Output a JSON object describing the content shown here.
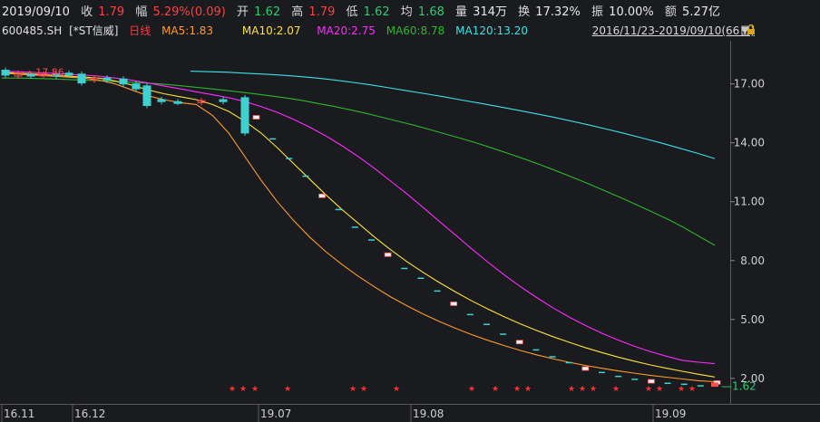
{
  "header": {
    "date": "2019/09/10",
    "close_label": "收",
    "close": "1.79",
    "change_label": "幅",
    "change": "5.29%(0.09)",
    "open_label": "开",
    "open": "1.62",
    "high_label": "高",
    "high": "1.79",
    "low_label": "低",
    "low": "1.62",
    "avg_label": "均",
    "avg": "1.68",
    "volume_label": "量",
    "volume": "314万",
    "turnover_label": "换",
    "turnover": "17.32%",
    "amplitude_label": "振",
    "amplitude": "10.00%",
    "amount_label": "额",
    "amount": "5.27亿"
  },
  "indicators": {
    "code": "600485.SH",
    "name": "[*ST信威]",
    "period": "日线",
    "ma5": "MA5:1.83",
    "ma10": "MA10:2.07",
    "ma20": "MA20:2.75",
    "ma60": "MA60:8.78",
    "ma120": "MA120:13.20",
    "range": "2016/11/23-2019/09/10(66日)",
    "dropdown": "▼",
    "colors": {
      "ma5": "#ff9a2e",
      "ma10": "#ffe23c",
      "ma20": "#ff2bff",
      "ma60": "#2fb52f",
      "ma120": "#3fe0e8",
      "up": "#ff4d4d",
      "down": "#3fd0d0"
    }
  },
  "annotations": {
    "high_price": "17.86",
    "last_price": "1.62"
  },
  "chart_data": {
    "type": "candlestick",
    "y_ticks": [
      "17.00",
      "14.00",
      "11.00",
      "8.00",
      "5.00",
      "2.00"
    ],
    "ylim": [
      0.7,
      19.2
    ],
    "x_ticks": [
      "16.11",
      "16.12",
      "19.07",
      "19.08",
      "19.09"
    ],
    "series": [
      {
        "name": "MA5",
        "values": [
          17.55,
          17.5,
          17.45,
          17.4,
          17.35,
          17.3,
          17.2,
          17.0,
          16.7,
          16.4,
          16.2,
          16.05,
          15.95,
          15.4,
          14.5,
          13.3,
          12.1,
          11.0,
          10.05,
          9.2,
          8.45,
          7.8,
          7.2,
          6.66,
          6.15,
          5.7,
          5.28,
          4.9,
          4.55,
          4.23,
          3.94,
          3.67,
          3.42,
          3.2,
          3.0,
          2.82,
          2.66,
          2.52,
          2.39,
          2.27,
          2.16,
          2.06,
          1.97,
          1.88,
          1.83
        ]
      },
      {
        "name": "MA10",
        "values": [
          17.6,
          17.55,
          17.5,
          17.45,
          17.4,
          17.35,
          17.3,
          17.15,
          16.95,
          16.7,
          16.5,
          16.35,
          16.2,
          15.95,
          15.6,
          15.1,
          14.5,
          13.75,
          12.95,
          12.15,
          11.35,
          10.6,
          9.9,
          9.2,
          8.55,
          7.95,
          7.4,
          6.88,
          6.4,
          5.95,
          5.53,
          5.14,
          4.78,
          4.44,
          4.13,
          3.84,
          3.57,
          3.32,
          3.09,
          2.88,
          2.69,
          2.52,
          2.36,
          2.21,
          2.07
        ]
      },
      {
        "name": "MA20",
        "values": [
          17.65,
          17.62,
          17.58,
          17.55,
          17.5,
          17.45,
          17.4,
          17.3,
          17.2,
          17.05,
          16.9,
          16.75,
          16.6,
          16.45,
          16.3,
          16.1,
          15.85,
          15.55,
          15.2,
          14.8,
          14.35,
          13.85,
          13.3,
          12.7,
          12.05,
          11.4,
          10.7,
          10.0,
          9.3,
          8.6,
          7.92,
          7.28,
          6.68,
          6.12,
          5.6,
          5.13,
          4.7,
          4.31,
          3.96,
          3.65,
          3.37,
          3.13,
          2.92,
          2.82,
          2.75
        ]
      },
      {
        "name": "MA60",
        "values": [
          17.3,
          17.3,
          17.28,
          17.26,
          17.23,
          17.2,
          17.17,
          17.13,
          17.09,
          17.05,
          17.0,
          16.93,
          16.85,
          16.77,
          16.68,
          16.59,
          16.49,
          16.39,
          16.28,
          16.15,
          16.0,
          15.85,
          15.68,
          15.5,
          15.3,
          15.1,
          14.9,
          14.68,
          14.45,
          14.22,
          13.98,
          13.72,
          13.45,
          13.17,
          12.88,
          12.57,
          12.25,
          11.92,
          11.58,
          11.23,
          10.87,
          10.5,
          10.12,
          9.7,
          9.24,
          8.78
        ]
      },
      {
        "name": "MA120",
        "values": [
          17.65,
          17.62,
          17.6,
          17.55,
          17.5,
          17.45,
          17.38,
          17.3,
          17.2,
          17.08,
          16.95,
          16.8,
          16.65,
          16.5,
          16.35,
          16.18,
          16.02,
          15.85,
          15.68,
          15.5,
          15.32,
          15.12,
          14.92,
          14.7,
          14.48,
          14.24,
          14.0,
          13.74,
          13.48,
          13.2
        ]
      },
      {
        "name": "price",
        "values": [
          17.6,
          17.55,
          17.4,
          17.2,
          17.1,
          16.5,
          16.3,
          16.0,
          15.9,
          16.2,
          15.3,
          14.2,
          13.2,
          12.3,
          11.3,
          10.6,
          9.7,
          9.05,
          8.3,
          7.6,
          7.1,
          6.45,
          5.8,
          5.25,
          4.75,
          4.25,
          3.85,
          3.45,
          3.1,
          2.8,
          2.5,
          2.3,
          2.1,
          1.95,
          1.85,
          1.75,
          1.7,
          1.62,
          1.79
        ]
      }
    ],
    "events": 20
  }
}
